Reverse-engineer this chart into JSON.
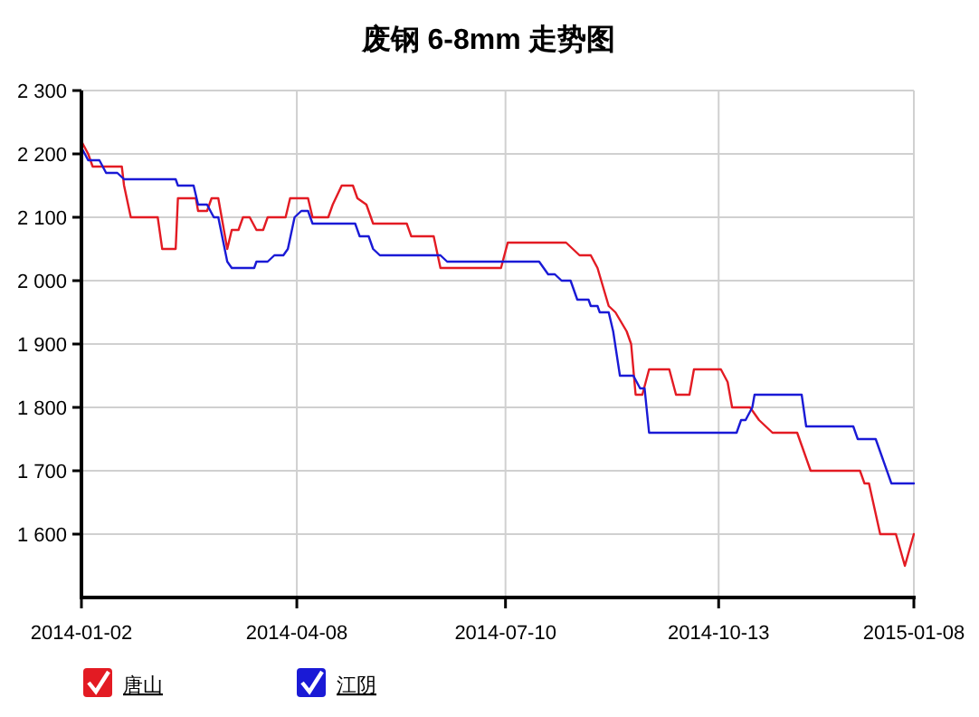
{
  "chart_data": {
    "type": "line",
    "title": "废钢 6-8mm 走势图",
    "xlim": [
      "2014-01-02",
      "2015-01-08"
    ],
    "xticks": [
      "2014-01-02",
      "2014-04-08",
      "2014-07-10",
      "2014-10-13",
      "2015-01-08"
    ],
    "ylim": [
      1500,
      2300
    ],
    "yticks": [
      {
        "value": 1600,
        "label": "1 600"
      },
      {
        "value": 1700,
        "label": "1 700"
      },
      {
        "value": 1800,
        "label": "1 800"
      },
      {
        "value": 1900,
        "label": "1 900"
      },
      {
        "value": 2000,
        "label": "2 000"
      },
      {
        "value": 2100,
        "label": "2 100"
      },
      {
        "value": 2200,
        "label": "2 200"
      },
      {
        "value": 2300,
        "label": "2 300"
      }
    ],
    "grid": true,
    "legend": "bottom left",
    "marker": "none",
    "line_style": "solid",
    "series": [
      {
        "name": "唐山",
        "color": "#e31b23",
        "x": [
          "2014-01-02",
          "2014-01-05",
          "2014-01-07",
          "2014-01-20",
          "2014-01-21",
          "2014-01-24",
          "2014-02-05",
          "2014-02-07",
          "2014-02-13",
          "2014-02-14",
          "2014-02-22",
          "2014-02-23",
          "2014-02-27",
          "2014-03-01",
          "2014-03-04",
          "2014-03-08",
          "2014-03-10",
          "2014-03-13",
          "2014-03-15",
          "2014-03-18",
          "2014-03-21",
          "2014-03-24",
          "2014-03-26",
          "2014-04-03",
          "2014-04-05",
          "2014-04-13",
          "2014-04-15",
          "2014-04-22",
          "2014-04-24",
          "2014-04-28",
          "2014-05-03",
          "2014-05-05",
          "2014-05-09",
          "2014-05-12",
          "2014-05-27",
          "2014-05-29",
          "2014-06-08",
          "2014-06-11",
          "2014-07-08",
          "2014-07-11",
          "2014-08-06",
          "2014-08-09",
          "2014-08-12",
          "2014-08-17",
          "2014-08-20",
          "2014-08-25",
          "2014-08-28",
          "2014-09-02",
          "2014-09-04",
          "2014-09-06",
          "2014-09-09",
          "2014-09-12",
          "2014-09-21",
          "2014-09-24",
          "2014-09-30",
          "2014-10-02",
          "2014-10-14",
          "2014-10-17",
          "2014-10-19",
          "2014-10-27",
          "2014-10-31",
          "2014-11-06",
          "2014-11-17",
          "2014-11-19",
          "2014-11-23",
          "2014-12-15",
          "2014-12-17",
          "2014-12-19",
          "2014-12-24",
          "2014-12-31",
          "2015-01-04",
          "2015-01-08"
        ],
        "values": [
          2220,
          2200,
          2180,
          2180,
          2150,
          2100,
          2100,
          2050,
          2050,
          2130,
          2130,
          2110,
          2110,
          2130,
          2130,
          2050,
          2080,
          2080,
          2100,
          2100,
          2080,
          2080,
          2100,
          2100,
          2130,
          2130,
          2100,
          2100,
          2120,
          2150,
          2150,
          2130,
          2120,
          2090,
          2090,
          2070,
          2070,
          2020,
          2020,
          2060,
          2060,
          2050,
          2040,
          2040,
          2020,
          1960,
          1950,
          1920,
          1900,
          1820,
          1820,
          1860,
          1860,
          1820,
          1820,
          1860,
          1860,
          1840,
          1800,
          1800,
          1780,
          1760,
          1760,
          1740,
          1700,
          1700,
          1680,
          1680,
          1600,
          1600,
          1550,
          1600
        ]
      },
      {
        "name": "江阴",
        "color": "#1a1ad6",
        "x": [
          "2014-01-02",
          "2014-01-05",
          "2014-01-10",
          "2014-01-13",
          "2014-01-18",
          "2014-01-21",
          "2014-02-13",
          "2014-02-14",
          "2014-02-21",
          "2014-02-23",
          "2014-02-27",
          "2014-03-02",
          "2014-03-04",
          "2014-03-08",
          "2014-03-10",
          "2014-03-20",
          "2014-03-21",
          "2014-03-26",
          "2014-03-29",
          "2014-04-02",
          "2014-04-04",
          "2014-04-07",
          "2014-04-10",
          "2014-04-13",
          "2014-04-15",
          "2014-05-04",
          "2014-05-06",
          "2014-05-10",
          "2014-05-12",
          "2014-05-15",
          "2014-06-11",
          "2014-06-14",
          "2014-07-25",
          "2014-07-29",
          "2014-08-01",
          "2014-08-04",
          "2014-08-08",
          "2014-08-11",
          "2014-08-16",
          "2014-08-17",
          "2014-08-20",
          "2014-08-21",
          "2014-08-25",
          "2014-08-27",
          "2014-08-30",
          "2014-09-05",
          "2014-09-08",
          "2014-09-10",
          "2014-09-12",
          "2014-10-21",
          "2014-10-23",
          "2014-10-25",
          "2014-10-28",
          "2014-10-29",
          "2014-11-19",
          "2014-11-21",
          "2014-12-12",
          "2014-12-14",
          "2014-12-22",
          "2014-12-25",
          "2014-12-29",
          "2015-01-08"
        ],
        "values": [
          2210,
          2190,
          2190,
          2170,
          2170,
          2160,
          2160,
          2150,
          2150,
          2120,
          2120,
          2100,
          2100,
          2030,
          2020,
          2020,
          2030,
          2030,
          2040,
          2040,
          2050,
          2100,
          2110,
          2110,
          2090,
          2090,
          2070,
          2070,
          2050,
          2040,
          2040,
          2030,
          2030,
          2010,
          2010,
          2000,
          2000,
          1970,
          1970,
          1960,
          1960,
          1950,
          1950,
          1920,
          1850,
          1850,
          1830,
          1830,
          1760,
          1760,
          1780,
          1780,
          1800,
          1820,
          1820,
          1770,
          1770,
          1750,
          1750,
          1720,
          1680,
          1680
        ]
      }
    ]
  }
}
